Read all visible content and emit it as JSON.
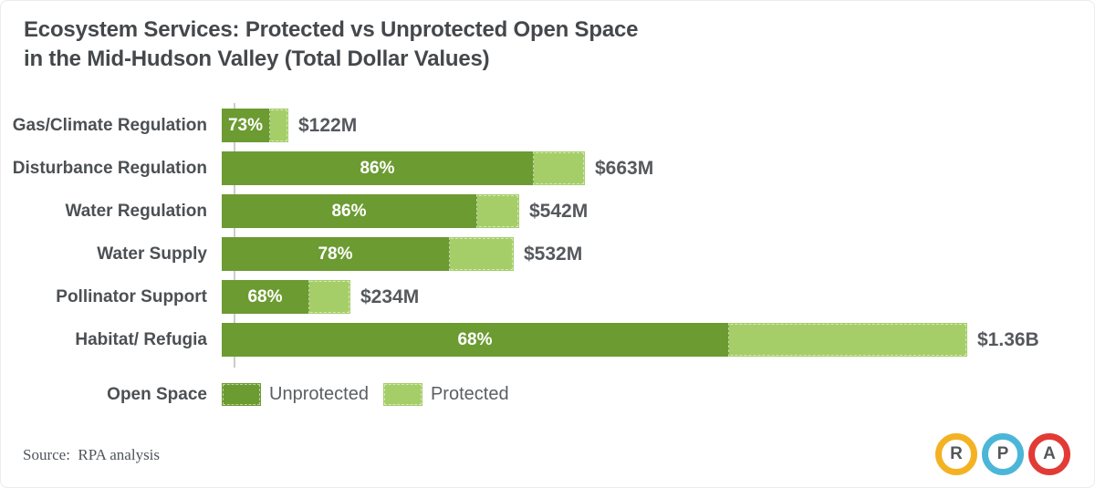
{
  "title": {
    "line1": "Ecosystem Services: Protected vs Unprotected Open Space",
    "line2": "in the Mid-Hudson Valley (Total Dollar Values)"
  },
  "chart_data": {
    "type": "bar",
    "orientation": "horizontal",
    "title": "Ecosystem Services: Protected vs Unprotected Open Space in the Mid-Hudson Valley (Total Dollar Values)",
    "categories": [
      "Gas/Climate Regulation",
      "Disturbance Regulation",
      "Water Regulation",
      "Water Supply",
      "Pollinator Support",
      "Habitat/ Refugia"
    ],
    "series": [
      {
        "name": "Unprotected",
        "share_pct": [
          73,
          86,
          86,
          78,
          68,
          68
        ]
      },
      {
        "name": "Protected",
        "share_pct": [
          27,
          14,
          14,
          22,
          32,
          32
        ]
      }
    ],
    "rows": [
      {
        "category": "Gas/Climate Regulation",
        "pct_unprotected": 73,
        "pct_label": "73%",
        "total_label": "$122M",
        "total_millions": 122
      },
      {
        "category": "Disturbance Regulation",
        "pct_unprotected": 86,
        "pct_label": "86%",
        "total_label": "$663M",
        "total_millions": 663
      },
      {
        "category": "Water Regulation",
        "pct_unprotected": 86,
        "pct_label": "86%",
        "total_label": "$542M",
        "total_millions": 542
      },
      {
        "category": "Water Supply",
        "pct_unprotected": 78,
        "pct_label": "78%",
        "total_label": "$532M",
        "total_millions": 532
      },
      {
        "category": "Pollinator Support",
        "pct_unprotected": 68,
        "pct_label": "68%",
        "total_label": "$234M",
        "total_millions": 234
      },
      {
        "category": "Habitat/ Refugia",
        "pct_unprotected": 68,
        "pct_label": "68%",
        "total_label": "$1.36B",
        "total_millions": 1360
      }
    ],
    "max_millions": 1360,
    "grid": false,
    "legend_position": "bottom"
  },
  "legend": {
    "title": "Open Space",
    "items": [
      {
        "label": "Unprotected",
        "color": "#6c9b32"
      },
      {
        "label": "Protected",
        "color": "#a5ce69"
      }
    ]
  },
  "source": "Source:  RPA analysis",
  "logo": {
    "letters": [
      {
        "letter": "R",
        "ring_color": "#f4b223"
      },
      {
        "letter": "P",
        "ring_color": "#4bb6d8"
      },
      {
        "letter": "A",
        "ring_color": "#e23b36"
      }
    ]
  },
  "colors": {
    "unprotected": "#6c9b32",
    "protected": "#a5ce69",
    "axis": "#cbcdcc",
    "title_text": "#45484b",
    "category_text": "#4c5053",
    "value_text": "#55585c",
    "percent_text": "#ffffff"
  }
}
